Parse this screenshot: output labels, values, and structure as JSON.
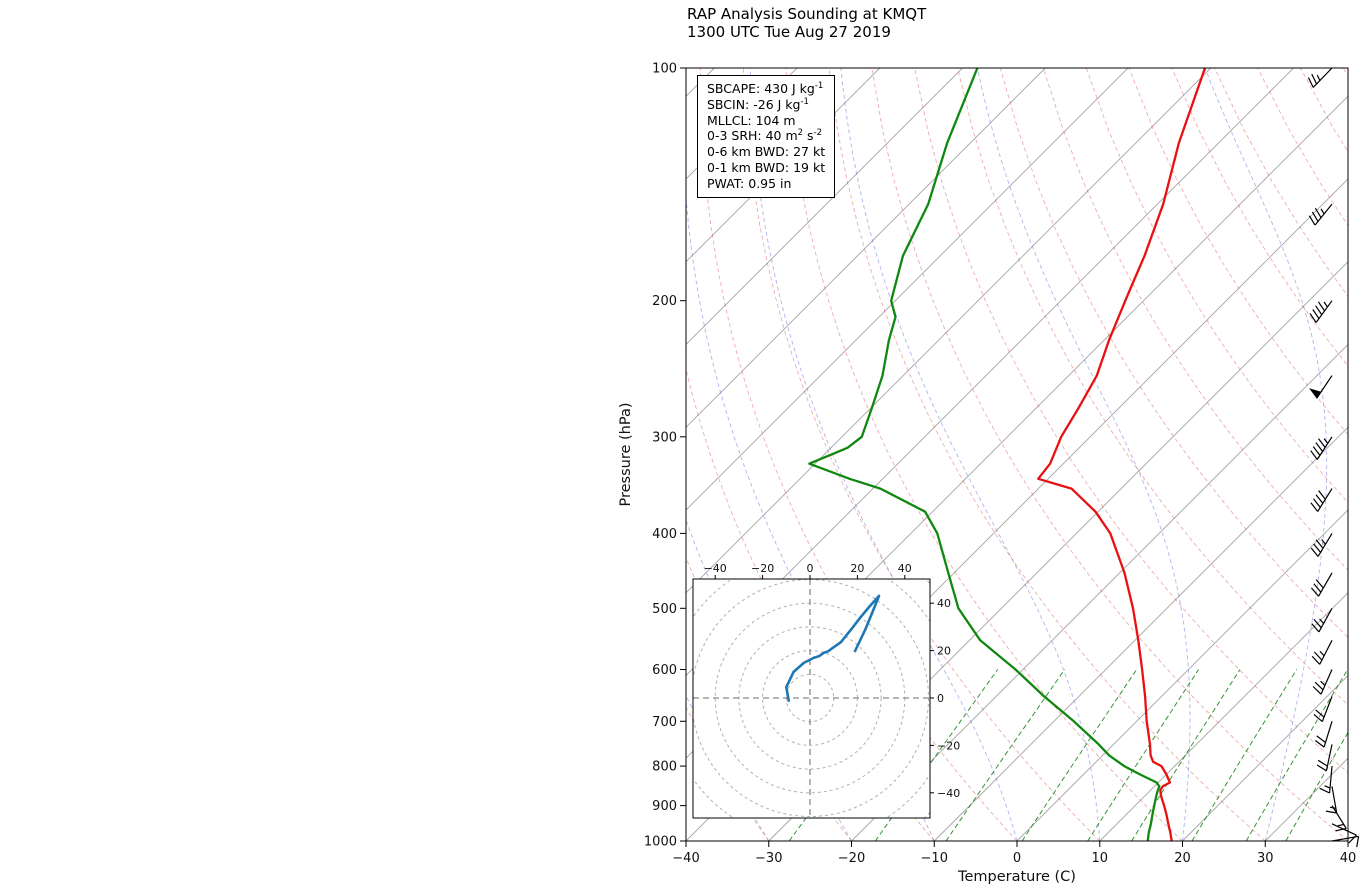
{
  "title": {
    "line1": "RAP Analysis Sounding at KMQT",
    "line2": "1300 UTC Tue Aug 27 2019"
  },
  "stats_box": {
    "lines": [
      [
        {
          "t": "SBCAPE: 430 J kg"
        },
        {
          "t": "-1",
          "sup": true
        }
      ],
      [
        {
          "t": "SBCIN: -26 J kg"
        },
        {
          "t": "-1",
          "sup": true
        }
      ],
      [
        {
          "t": "MLLCL: 104 m"
        }
      ],
      [
        {
          "t": "0-3 SRH: 40 m"
        },
        {
          "t": "2",
          "sup": true
        },
        {
          "t": " s"
        },
        {
          "t": "-2",
          "sup": true
        }
      ],
      [
        {
          "t": "0-6 km BWD: 27 kt"
        }
      ],
      [
        {
          "t": "0-1 km BWD: 19 kt"
        }
      ],
      [
        {
          "t": "PWAT: 0.95 in"
        }
      ]
    ]
  },
  "chart_data": {
    "type": "skewt-log-p",
    "station": "KMQT",
    "valid_time": "1300 UTC Tue Aug 27 2019",
    "x_axis": {
      "label": "Temperature (C)",
      "units": "degC",
      "min": -40,
      "max": 40,
      "tick_values": [
        -40,
        -30,
        -20,
        -10,
        0,
        10,
        20,
        30,
        40
      ],
      "tick_labels": [
        "−40",
        "−30",
        "−20",
        "−10",
        "0",
        "10",
        "20",
        "30",
        "40"
      ]
    },
    "y_axis": {
      "label": "Pressure (hPa)",
      "units": "hPa",
      "min": 100,
      "max": 1000,
      "scale": "log",
      "tick_values": [
        100,
        200,
        300,
        400,
        500,
        600,
        700,
        800,
        900,
        1000
      ]
    },
    "skew": "45deg",
    "parameters": {
      "SBCAPE_J_kg": 430,
      "SBCIN_J_kg": -26,
      "MLLCL_m": 104,
      "SRH_0_3_m2_s2": 40,
      "BWD_0_6_kt": 27,
      "BWD_0_1_kt": 19,
      "PWAT_in": 0.95
    },
    "series": [
      {
        "name": "temperature",
        "color": "#e81010",
        "pressure_hPa": [
          1000,
          975,
          950,
          925,
          900,
          875,
          860,
          850,
          840,
          820,
          800,
          790,
          775,
          750,
          700,
          650,
          600,
          550,
          500,
          450,
          400,
          375,
          350,
          340,
          325,
          300,
          275,
          250,
          225,
          200,
          190,
          175,
          150,
          125,
          100
        ],
        "values_C": [
          18.7,
          17.5,
          16.2,
          14.9,
          13.5,
          12.0,
          11.2,
          11.0,
          11.4,
          10.0,
          8.4,
          6.9,
          5.8,
          4.4,
          1.2,
          -2.0,
          -5.6,
          -9.6,
          -14.1,
          -19.4,
          -25.9,
          -30.3,
          -36.0,
          -41.2,
          -41.6,
          -43.5,
          -44.9,
          -46.6,
          -49.4,
          -52.2,
          -53.4,
          -55.3,
          -59.3,
          -64.8,
          -70.7
        ]
      },
      {
        "name": "dewpoint",
        "color": "#108810",
        "pressure_hPa": [
          1000,
          975,
          950,
          925,
          900,
          875,
          860,
          850,
          840,
          820,
          800,
          775,
          750,
          700,
          650,
          600,
          550,
          500,
          450,
          400,
          375,
          350,
          340,
          325,
          310,
          300,
          275,
          250,
          225,
          210,
          200,
          175,
          150,
          125,
          100
        ],
        "values_C": [
          15.8,
          14.9,
          14.1,
          13.2,
          12.3,
          11.4,
          10.9,
          10.6,
          9.8,
          6.8,
          3.9,
          0.8,
          -1.8,
          -7.6,
          -14.2,
          -20.9,
          -28.7,
          -35.2,
          -40.7,
          -46.8,
          -50.9,
          -59.1,
          -64.0,
          -70.7,
          -68.0,
          -67.6,
          -69.9,
          -72.5,
          -76.0,
          -78.0,
          -80.5,
          -84.5,
          -87.7,
          -92.8,
          -98.2
        ]
      }
    ],
    "winds": {
      "barb_color": "#000000",
      "pressure_hPa": [
        1000,
        950,
        900,
        850,
        800,
        750,
        700,
        650,
        600,
        550,
        500,
        450,
        400,
        350,
        300,
        250,
        200,
        150,
        100
      ],
      "direction_deg_from": [
        80,
        115,
        148,
        170,
        185,
        192,
        197,
        201,
        204,
        207,
        209,
        210,
        211,
        212,
        213,
        214,
        216,
        219,
        224
      ],
      "speed_kt": [
        9,
        11,
        13,
        15,
        17,
        18,
        20,
        21,
        23,
        25,
        27,
        30,
        34,
        40,
        46,
        52,
        45,
        37,
        27
      ]
    },
    "background": {
      "isotherms_C": [
        -130,
        -120,
        -110,
        -100,
        -90,
        -80,
        -70,
        -60,
        -50,
        -40,
        -30,
        -20,
        -10,
        0,
        10,
        20,
        30,
        40
      ],
      "isotherm_color": "#a3a3a3",
      "dry_adiabats_theta_C": [
        -30,
        -20,
        -10,
        0,
        10,
        20,
        30,
        40,
        50,
        60,
        70,
        80,
        90,
        100,
        110,
        120,
        130,
        140,
        150,
        160
      ],
      "dry_adiabat_color": "rgba(214,72,72,0.45)",
      "moist_adiabats_start_C": [
        -40,
        -30,
        -20,
        -10,
        0,
        10,
        20,
        30,
        40,
        50,
        60,
        70,
        80,
        90,
        100,
        110,
        120
      ],
      "moist_adiabat_color": "rgba(84,84,218,0.45)",
      "mixing_ratio_g_kg": [
        0.4,
        1,
        2,
        4,
        7,
        10,
        16,
        24,
        32
      ],
      "mixing_ratio_color": "rgba(20,128,20,0.85)",
      "mixing_ratio_top_hPa": 600
    },
    "hodograph": {
      "x_tick_values": [
        -40,
        -20,
        0,
        20,
        40
      ],
      "x_tick_labels": [
        "−40",
        "−20",
        "0",
        "20",
        "40"
      ],
      "y_tick_values": [
        40,
        20,
        0,
        -20,
        -40
      ],
      "y_tick_labels": [
        "40",
        "20",
        "0",
        "−20",
        "−40"
      ],
      "ring_interval_kt": 10,
      "trace_color": "#1f77b4",
      "trace_uv_kt": [
        [
          -8.9,
          -1.6
        ],
        [
          -10.0,
          4.6
        ],
        [
          -6.9,
          11.0
        ],
        [
          -2.6,
          14.8
        ],
        [
          1.5,
          16.9
        ],
        [
          3.7,
          17.6
        ],
        [
          5.9,
          19.1
        ],
        [
          7.5,
          19.6
        ],
        [
          9.4,
          21.0
        ],
        [
          11.3,
          22.3
        ],
        [
          13.1,
          23.6
        ],
        [
          15.0,
          26.0
        ],
        [
          17.5,
          29.1
        ],
        [
          21.2,
          33.9
        ],
        [
          25.1,
          38.6
        ],
        [
          29.1,
          43.1
        ],
        [
          26.4,
          36.4
        ],
        [
          23.3,
          28.8
        ],
        [
          18.8,
          19.4
        ]
      ]
    }
  }
}
